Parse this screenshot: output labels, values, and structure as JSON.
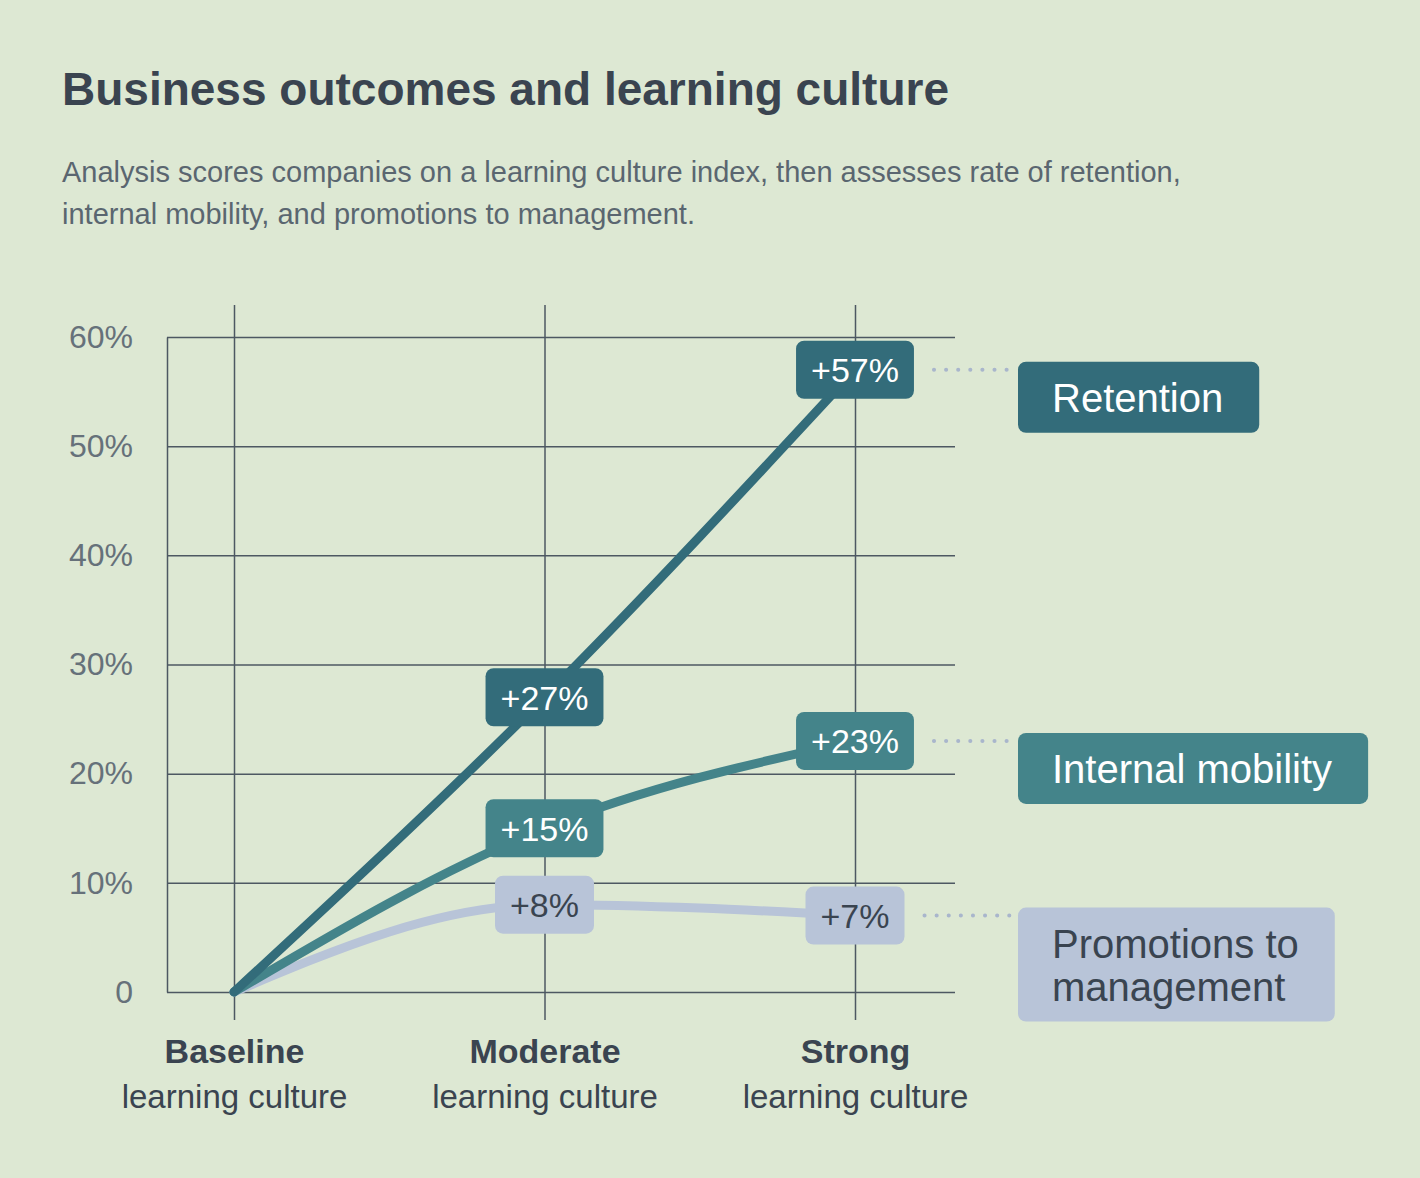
{
  "chart_data": {
    "type": "line",
    "title": "Business outcomes and learning culture",
    "subtitle": [
      "Analysis scores companies on a learning culture index, then assesses rate of retention,",
      "internal mobility, and promotions to management."
    ],
    "categories": [
      "Baseline",
      "Moderate",
      "Strong"
    ],
    "category_sublabel": "learning culture",
    "series": [
      {
        "name": "Retention",
        "color": "#336c7a",
        "values": [
          0,
          27,
          57
        ],
        "value_labels": [
          null,
          "+27%",
          "+57%"
        ]
      },
      {
        "name": "Internal mobility",
        "color": "#44848a",
        "values": [
          0,
          15,
          23
        ],
        "value_labels": [
          null,
          "+15%",
          "+23%"
        ]
      },
      {
        "name": "Promotions to management",
        "color": "#b8c4d8",
        "values": [
          0,
          8,
          7
        ],
        "value_labels": [
          null,
          "+8%",
          "+7%"
        ]
      }
    ],
    "ylim": [
      0,
      60
    ],
    "yticks": [
      0,
      {
        "value": 10,
        "label": "10%"
      },
      {
        "value": 20,
        "label": "20%"
      },
      {
        "value": 30,
        "label": "30%"
      },
      {
        "value": 40,
        "label": "40%"
      },
      {
        "value": 50,
        "label": "50%"
      },
      {
        "value": 60,
        "label": "60%"
      }
    ],
    "grid": true,
    "data_labels": true
  }
}
